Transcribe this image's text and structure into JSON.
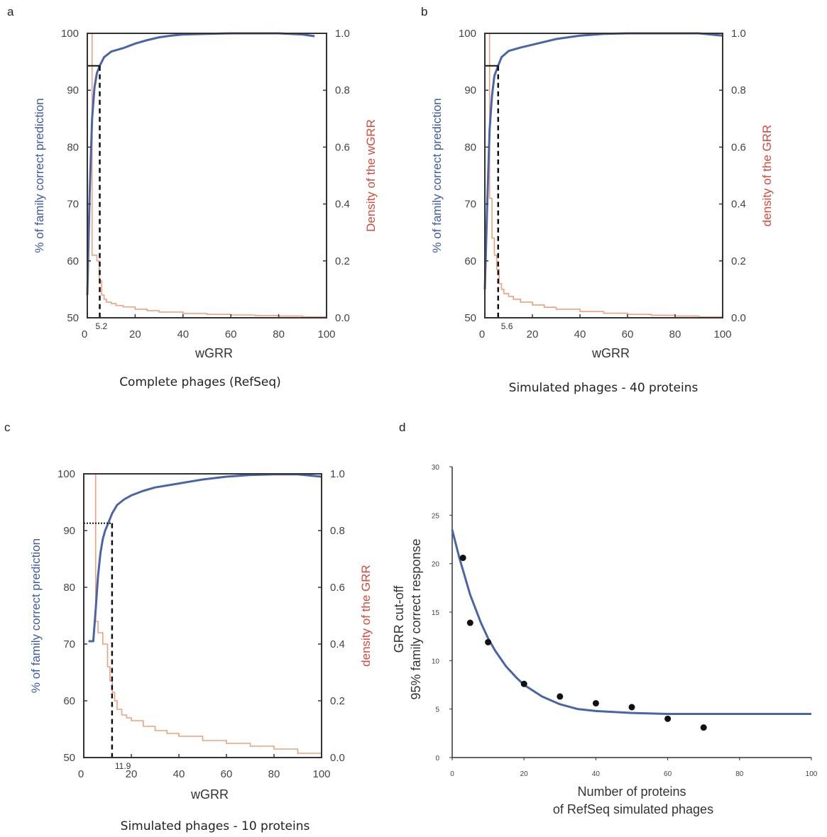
{
  "colors": {
    "accuracy": "#4a64a8",
    "density": "#f0a07e",
    "cutoff": "#111111",
    "fit": "#4a64a8",
    "points": "#111111",
    "left_axis_text": "#3f5aa6",
    "right_axis_text": "#d9483b"
  },
  "chart_data": [
    {
      "panel": "a",
      "type": "line",
      "caption": "Complete phages (RefSeq)",
      "xlabel": "wGRR",
      "ylabel_left": "% of family correct prediction",
      "ylabel_right": "Density of the wGRR",
      "xlim": [
        0,
        100
      ],
      "ylim_left": [
        50,
        100
      ],
      "ylim_right": [
        0,
        1.0
      ],
      "xticks": [
        "0",
        "20",
        "40",
        "60",
        "80",
        "100"
      ],
      "yticks_left": [
        "50",
        "60",
        "70",
        "80",
        "90",
        "100"
      ],
      "yticks_right": [
        "0.0",
        "0.2",
        "0.4",
        "0.6",
        "0.8",
        "1.0"
      ],
      "cutoff": {
        "x": 5.2,
        "y": 94.3,
        "label": "5.2"
      },
      "series": [
        {
          "axis": "left",
          "style": "line",
          "x": [
            0,
            1,
            2,
            3,
            4,
            5.2,
            7,
            10,
            15,
            20,
            25,
            30,
            35,
            40,
            50,
            60,
            70,
            80,
            90,
            95
          ],
          "y": [
            54,
            72,
            85,
            90.5,
            93,
            94.3,
            95.8,
            96.8,
            97.4,
            98.2,
            98.8,
            99.3,
            99.6,
            99.8,
            99.9,
            100,
            100,
            100,
            99.8,
            99.5
          ]
        },
        {
          "axis": "right",
          "style": "step",
          "x": [
            1.5,
            2,
            4,
            5,
            6,
            7,
            8,
            10,
            12,
            15,
            20,
            25,
            30,
            40,
            50,
            60,
            70,
            80,
            90,
            100
          ],
          "y": [
            1.0,
            0.22,
            0.2,
            0.13,
            0.08,
            0.065,
            0.055,
            0.05,
            0.043,
            0.038,
            0.03,
            0.025,
            0.02,
            0.015,
            0.012,
            0.01,
            0.008,
            0.006,
            0.003,
            0.0
          ]
        }
      ]
    },
    {
      "panel": "b",
      "type": "line",
      "caption": "Simulated phages - 40 proteins",
      "xlabel": "wGRR",
      "ylabel_left": "% of family correct prediction",
      "ylabel_right": "density of the GRR",
      "xlim": [
        0,
        100
      ],
      "ylim_left": [
        50,
        100
      ],
      "ylim_right": [
        0,
        1.0
      ],
      "xticks": [
        "0",
        "20",
        "40",
        "60",
        "80",
        "100"
      ],
      "yticks_left": [
        "50",
        "60",
        "70",
        "80",
        "90",
        "100"
      ],
      "yticks_right": [
        "0.0",
        "0.2",
        "0.4",
        "0.6",
        "0.8",
        "1.0"
      ],
      "cutoff": {
        "x": 5.6,
        "y": 94.3,
        "label": "5.6"
      },
      "series": [
        {
          "axis": "left",
          "style": "line",
          "x": [
            0,
            1,
            2,
            3,
            4,
            5.6,
            7,
            10,
            15,
            20,
            25,
            30,
            40,
            50,
            60,
            70,
            80,
            90,
            95,
            100
          ],
          "y": [
            55,
            70,
            83,
            89,
            92.5,
            94.3,
            95.8,
            96.9,
            97.5,
            98,
            98.5,
            99,
            99.6,
            99.9,
            100,
            100,
            100,
            100,
            99.8,
            99.6
          ]
        },
        {
          "axis": "right",
          "style": "step",
          "x": [
            1.5,
            2,
            3,
            4,
            5,
            6,
            7,
            8,
            10,
            12,
            15,
            20,
            25,
            30,
            40,
            50,
            60,
            70,
            80,
            90,
            100
          ],
          "y": [
            1.0,
            0.42,
            0.28,
            0.22,
            0.17,
            0.12,
            0.1,
            0.085,
            0.075,
            0.065,
            0.055,
            0.045,
            0.037,
            0.03,
            0.022,
            0.016,
            0.012,
            0.009,
            0.006,
            0.003,
            0.0
          ]
        }
      ]
    },
    {
      "panel": "c",
      "type": "line",
      "caption": "Simulated phages - 10 proteins",
      "xlabel": "wGRR",
      "ylabel_left": "% of family correct prediction",
      "ylabel_right": "density of the GRR",
      "xlim": [
        0,
        100
      ],
      "ylim_left": [
        50,
        100
      ],
      "ylim_right": [
        0,
        1.0
      ],
      "xticks": [
        "0",
        "20",
        "40",
        "60",
        "80",
        "100"
      ],
      "yticks_left": [
        "50",
        "60",
        "70",
        "80",
        "90",
        "100"
      ],
      "yticks_right": [
        "0.0",
        "0.2",
        "0.4",
        "0.6",
        "0.8",
        "1.0"
      ],
      "cutoff": {
        "x": 11.9,
        "y": 91.3,
        "label": "11.9"
      },
      "series": [
        {
          "axis": "left",
          "style": "line",
          "x": [
            2,
            4,
            5,
            6,
            7,
            8,
            9,
            10,
            11.9,
            14,
            17,
            20,
            25,
            30,
            40,
            50,
            60,
            70,
            80,
            90,
            100
          ],
          "y": [
            70.5,
            70.5,
            76,
            82,
            86,
            88.5,
            90,
            91,
            93,
            94.5,
            95.5,
            96.2,
            97,
            97.6,
            98.3,
            99,
            99.5,
            99.8,
            99.9,
            99.9,
            99.5
          ]
        },
        {
          "axis": "right",
          "style": "step",
          "x": [
            4,
            5,
            6,
            8,
            10,
            11,
            12,
            13,
            14,
            16,
            18,
            20,
            25,
            30,
            35,
            40,
            50,
            60,
            70,
            80,
            90,
            100
          ],
          "y": [
            1.0,
            0.48,
            0.44,
            0.4,
            0.32,
            0.27,
            0.23,
            0.2,
            0.17,
            0.15,
            0.14,
            0.13,
            0.11,
            0.095,
            0.085,
            0.075,
            0.06,
            0.05,
            0.04,
            0.03,
            0.015,
            0.0
          ]
        }
      ]
    },
    {
      "panel": "d",
      "type": "scatter",
      "xlabel": "Number of proteins",
      "xlabel_line2": "of RefSeq simulated phages",
      "ylabel": "GRR cut-off",
      "ylabel_line2": "95% family correct response",
      "xlim": [
        0,
        100
      ],
      "ylim": [
        0,
        30
      ],
      "xticks": [
        "0",
        "20",
        "40",
        "60",
        "80",
        "100"
      ],
      "yticks": [
        "0",
        "5",
        "10",
        "15",
        "20",
        "25",
        "30"
      ],
      "points": {
        "x": [
          3,
          5,
          10,
          20,
          30,
          40,
          50,
          60,
          70
        ],
        "y": [
          20.6,
          13.9,
          11.9,
          7.6,
          6.3,
          5.6,
          5.2,
          4.0,
          3.1
        ]
      },
      "fit": {
        "x": [
          0,
          2,
          5,
          8,
          10,
          12,
          15,
          18,
          20,
          25,
          30,
          35,
          40,
          50,
          60,
          70,
          80,
          90,
          100
        ],
        "y": [
          23.5,
          20.6,
          16.8,
          13.9,
          12.3,
          11.0,
          9.4,
          8.2,
          7.5,
          6.3,
          5.5,
          5.0,
          4.8,
          4.6,
          4.5,
          4.5,
          4.5,
          4.5,
          4.5
        ]
      }
    }
  ]
}
